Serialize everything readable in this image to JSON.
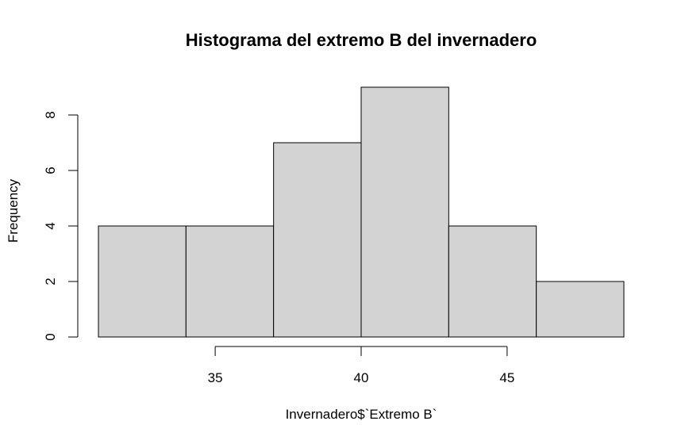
{
  "chart_data": {
    "type": "bar",
    "title": "Histograma del extremo B del invernadero",
    "xlabel": "Invernadero$`Extremo B`",
    "ylabel": "Frequency",
    "bins": [
      {
        "start": 31,
        "end": 34,
        "count": 4
      },
      {
        "start": 34,
        "end": 37,
        "count": 4
      },
      {
        "start": 37,
        "end": 40,
        "count": 7
      },
      {
        "start": 40,
        "end": 43,
        "count": 9
      },
      {
        "start": 43,
        "end": 46,
        "count": 4
      },
      {
        "start": 46,
        "end": 49,
        "count": 2
      }
    ],
    "xticks": [
      35,
      40,
      45
    ],
    "yticks": [
      0,
      2,
      4,
      6,
      8
    ],
    "xlim": [
      31,
      49
    ],
    "ylim": [
      0,
      9
    ],
    "bar_fill": "#d3d3d3",
    "bar_stroke": "#000000",
    "grid": false
  }
}
